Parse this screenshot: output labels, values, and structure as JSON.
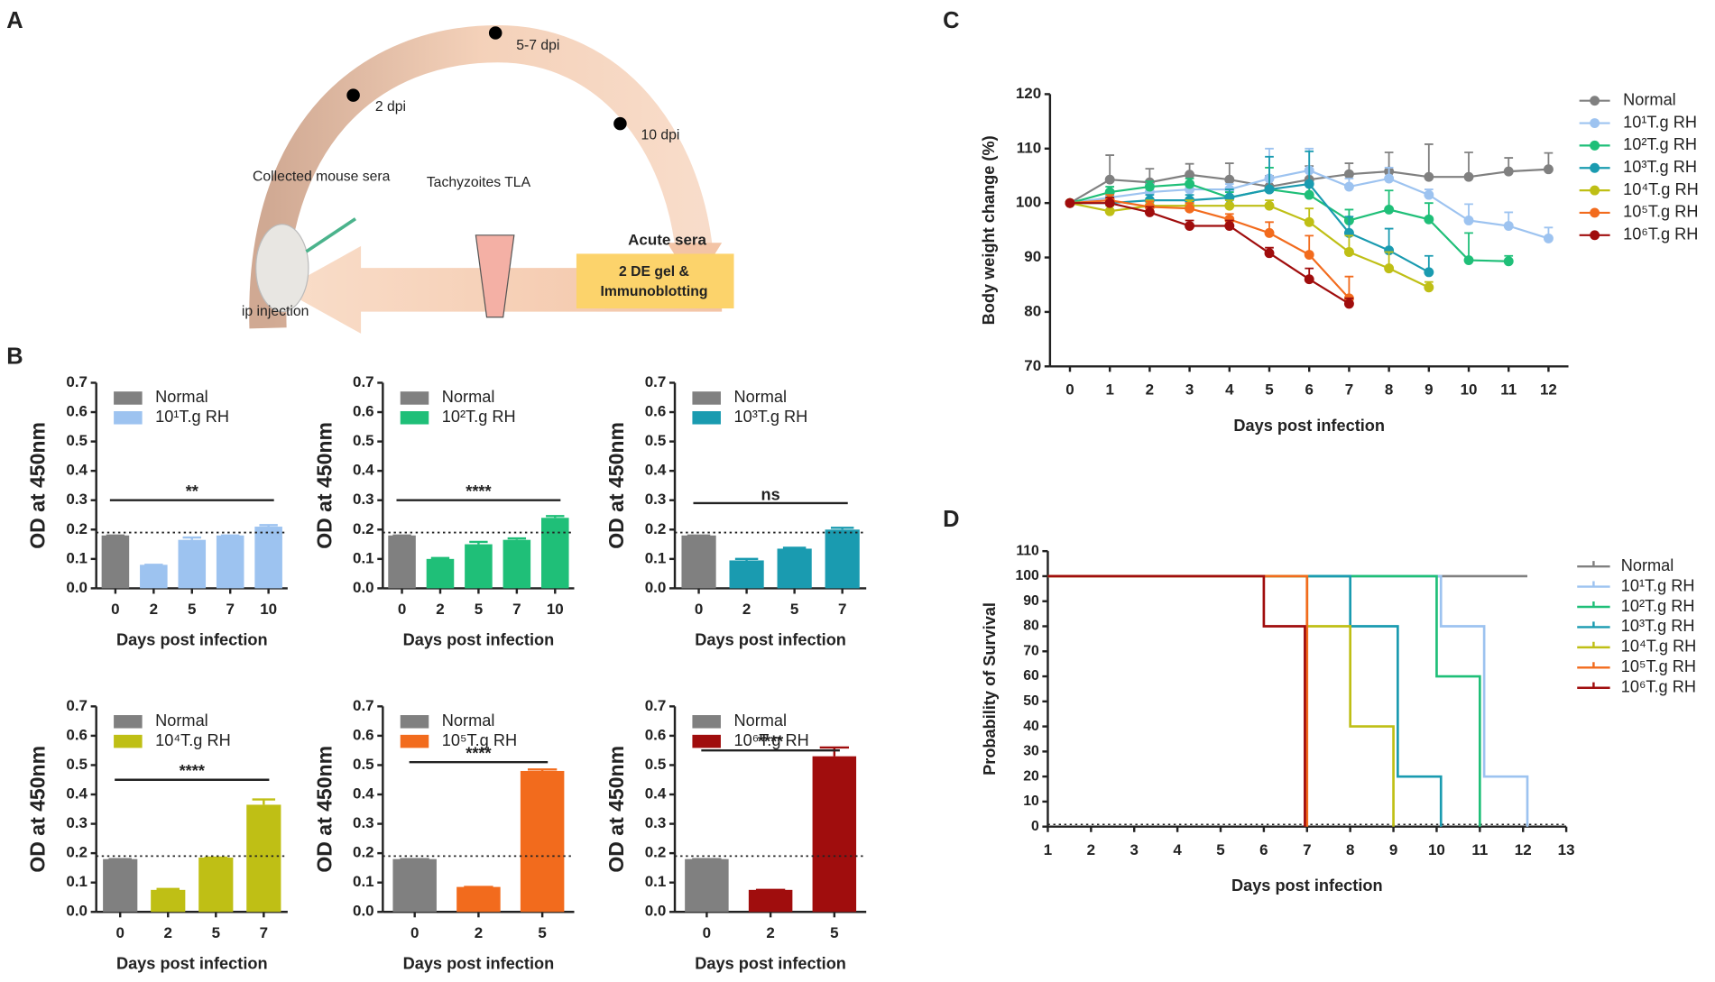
{
  "panel_labels": [
    "A",
    "B",
    "C",
    "D"
  ],
  "panel_a": {
    "texts": [
      "5-7 dpi",
      "2 dpi",
      "10 dpi",
      "Collected mouse sera",
      "Tachyzoites TLA",
      "Acute sera",
      "2 DE gel &",
      "Immunoblotting",
      "ip injection"
    ]
  },
  "chart_data": [
    {
      "type": "bar",
      "xlabel": "Days post infection",
      "ylabel": "OD at 450nm",
      "categories": [
        0,
        2,
        5,
        7,
        10
      ],
      "values": [
        0.18,
        0.08,
        0.165,
        0.18,
        0.21
      ],
      "errors": [
        0,
        0,
        0.008,
        0,
        0.005
      ],
      "colors": [
        "#808080",
        "#9dc3f0",
        "#9dc3f0",
        "#9dc3f0",
        "#9dc3f0"
      ],
      "legend": [
        {
          "name": "Normal",
          "color": "#808080"
        },
        {
          "name": "10¹T.g RH",
          "color": "#9dc3f0"
        }
      ],
      "ylim": [
        0,
        0.7
      ],
      "yticks": [
        {
          "value": 0,
          "label": "0.0"
        },
        0.1,
        0.2,
        0.3,
        0.4,
        0.5,
        0.6,
        0.7
      ],
      "reference_line": 0.19,
      "annotation": {
        "text": "**",
        "y": 0.3
      }
    },
    {
      "type": "bar",
      "xlabel": "Days post infection",
      "ylabel": "OD at 450nm",
      "categories": [
        0,
        2,
        5,
        7,
        10
      ],
      "values": [
        0.18,
        0.1,
        0.15,
        0.165,
        0.24
      ],
      "errors": [
        0,
        0.003,
        0.008,
        0.005,
        0.006
      ],
      "colors": [
        "#808080",
        "#1fbf78",
        "#1fbf78",
        "#1fbf78",
        "#1fbf78"
      ],
      "legend": [
        {
          "name": "Normal",
          "color": "#808080"
        },
        {
          "name": "10²T.g RH",
          "color": "#1fbf78"
        }
      ],
      "ylim": [
        0,
        0.7
      ],
      "yticks": [
        {
          "value": 0,
          "label": "0.0"
        },
        0.1,
        0.2,
        0.3,
        0.4,
        0.5,
        0.6,
        0.7
      ],
      "reference_line": 0.19,
      "annotation": {
        "text": "****",
        "y": 0.3
      }
    },
    {
      "type": "bar",
      "xlabel": "Days post infection",
      "ylabel": "OD at 450nm",
      "categories": [
        0,
        2,
        5,
        7
      ],
      "values": [
        0.18,
        0.095,
        0.135,
        0.2
      ],
      "errors": [
        0,
        0.005,
        0.003,
        0.006
      ],
      "colors": [
        "#808080",
        "#1a9bb0",
        "#1a9bb0",
        "#1a9bb0"
      ],
      "legend": [
        {
          "name": "Normal",
          "color": "#808080"
        },
        {
          "name": "10³T.g RH",
          "color": "#1a9bb0"
        }
      ],
      "ylim": [
        0,
        0.7
      ],
      "yticks": [
        {
          "value": 0,
          "label": "0.0"
        },
        0.1,
        0.2,
        0.3,
        0.4,
        0.5,
        0.6,
        0.7
      ],
      "reference_line": 0.19,
      "annotation": {
        "text": "ns",
        "y": 0.29
      }
    },
    {
      "type": "bar",
      "xlabel": "Days post infection",
      "ylabel": "OD at 450nm",
      "categories": [
        0,
        2,
        5,
        7
      ],
      "values": [
        0.18,
        0.075,
        0.185,
        0.365
      ],
      "errors": [
        0,
        0.003,
        0,
        0.018
      ],
      "colors": [
        "#808080",
        "#bfbf15",
        "#bfbf15",
        "#bfbf15"
      ],
      "legend": [
        {
          "name": "Normal",
          "color": "#808080"
        },
        {
          "name": "10⁴T.g RH",
          "color": "#bfbf15"
        }
      ],
      "ylim": [
        0,
        0.7
      ],
      "yticks": [
        {
          "value": 0,
          "label": "0.0"
        },
        0.1,
        0.2,
        0.3,
        0.4,
        0.5,
        0.6,
        0.7
      ],
      "reference_line": 0.19,
      "annotation": {
        "text": "****",
        "y": 0.45
      }
    },
    {
      "type": "bar",
      "xlabel": "Days post infection",
      "ylabel": "OD at 450nm",
      "categories": [
        0,
        2,
        5
      ],
      "values": [
        0.18,
        0.085,
        0.48
      ],
      "errors": [
        0,
        0,
        0.005
      ],
      "colors": [
        "#808080",
        "#f26b1d",
        "#f26b1d"
      ],
      "legend": [
        {
          "name": "Normal",
          "color": "#808080"
        },
        {
          "name": "10⁵T.g RH",
          "color": "#f26b1d"
        }
      ],
      "ylim": [
        0,
        0.7
      ],
      "yticks": [
        {
          "value": 0,
          "label": "0.0"
        },
        0.1,
        0.2,
        0.3,
        0.4,
        0.5,
        0.6,
        0.7
      ],
      "reference_line": 0.19,
      "annotation": {
        "text": "****",
        "y": 0.51
      }
    },
    {
      "type": "bar",
      "xlabel": "Days post infection",
      "ylabel": "OD at 450nm",
      "categories": [
        0,
        2,
        5
      ],
      "values": [
        0.18,
        0.075,
        0.53
      ],
      "errors": [
        0,
        0,
        0.03
      ],
      "colors": [
        "#808080",
        "#a00d0d",
        "#a00d0d"
      ],
      "legend": [
        {
          "name": "Normal",
          "color": "#808080"
        },
        {
          "name": "10⁶T.g RH",
          "color": "#a00d0d"
        }
      ],
      "ylim": [
        0,
        0.7
      ],
      "yticks": [
        {
          "value": 0,
          "label": "0.0"
        },
        0.1,
        0.2,
        0.3,
        0.4,
        0.5,
        0.6,
        0.7
      ],
      "reference_line": 0.19,
      "annotation": {
        "text": "****",
        "y": 0.55
      }
    },
    {
      "type": "line",
      "xlabel": "Days post infection",
      "ylabel": "Body weight change (%)",
      "x": [
        0,
        1,
        2,
        3,
        4,
        5,
        6,
        7,
        8,
        9,
        10,
        11,
        12
      ],
      "xlim": [
        -0.5,
        12.5
      ],
      "xticks": [
        0,
        1,
        2,
        3,
        4,
        5,
        6,
        7,
        8,
        9,
        10,
        11,
        12
      ],
      "ylim": [
        70,
        120
      ],
      "yticks": [
        70,
        80,
        90,
        100,
        110,
        120
      ],
      "series": [
        {
          "name": "Normal",
          "color": "#808080",
          "values": [
            100,
            104.3,
            103.8,
            105.2,
            104.3,
            103,
            104.3,
            105.3,
            105.8,
            104.8,
            104.8,
            105.8,
            106.2
          ],
          "errors": [
            0,
            4.5,
            2.5,
            2,
            3,
            2,
            2.5,
            2,
            3.5,
            6,
            4.5,
            2.5,
            3
          ]
        },
        {
          "name": "10¹T.g RH",
          "color": "#9dc3f0",
          "values": [
            100,
            101,
            102,
            102.5,
            102.5,
            104.5,
            106,
            103,
            104.5,
            101.5,
            96.8,
            95.8,
            93.5
          ],
          "errors": [
            0,
            1,
            1.5,
            1,
            1,
            5.5,
            4,
            1.5,
            2,
            1,
            3,
            2.5,
            2
          ]
        },
        {
          "name": "10²T.g RH",
          "color": "#1fbf78",
          "values": [
            100,
            102,
            103,
            103.5,
            101,
            102.5,
            101.5,
            96.8,
            98.8,
            97,
            89.5,
            89.3,
            null
          ],
          "errors": [
            0,
            1,
            1,
            1,
            1,
            4,
            2,
            2,
            3.5,
            3,
            5,
            1,
            null
          ]
        },
        {
          "name": "10³T.g RH",
          "color": "#1a9bb0",
          "values": [
            100,
            100,
            100.5,
            100.5,
            101,
            102.5,
            103.5,
            94.5,
            91.3,
            87.3,
            null,
            null,
            null
          ],
          "errors": [
            0,
            1,
            1,
            1,
            1.5,
            6,
            6,
            3,
            4,
            3,
            null,
            null,
            null
          ]
        },
        {
          "name": "10⁴T.g RH",
          "color": "#bfbf15",
          "values": [
            100,
            98.5,
            99.5,
            99.5,
            99.5,
            99.5,
            96.5,
            91,
            88,
            84.5,
            null,
            null,
            null
          ],
          "errors": [
            0,
            1,
            1,
            1,
            1,
            1,
            2.5,
            3,
            3,
            1,
            null,
            null,
            null
          ]
        },
        {
          "name": "10⁵T.g RH",
          "color": "#f26b1d",
          "values": [
            100,
            100.5,
            99.3,
            99,
            97,
            94.5,
            90.5,
            82.5,
            null,
            null,
            null,
            null,
            null
          ],
          "errors": [
            0,
            1,
            1,
            1,
            1,
            2,
            3.5,
            4,
            null,
            null,
            null,
            null,
            null
          ]
        },
        {
          "name": "10⁶T.g RH",
          "color": "#a00d0d",
          "values": [
            100,
            100,
            98.3,
            95.8,
            95.8,
            90.8,
            86,
            81.5,
            null,
            null,
            null,
            null,
            null
          ],
          "errors": [
            0,
            1,
            1,
            1,
            1,
            1,
            2,
            1,
            null,
            null,
            null,
            null,
            null
          ]
        }
      ]
    },
    {
      "type": "step",
      "xlabel": "Days post infection",
      "ylabel": "Probability of Survival",
      "xlim": [
        1,
        13
      ],
      "xticks": [
        1,
        2,
        3,
        4,
        5,
        6,
        7,
        8,
        9,
        10,
        11,
        12,
        13
      ],
      "ylim": [
        0,
        110
      ],
      "yticks": [
        0,
        10,
        20,
        30,
        40,
        50,
        60,
        70,
        80,
        90,
        100,
        110
      ],
      "series": [
        {
          "name": "Normal",
          "color": "#808080",
          "x": [
            1,
            12.1
          ],
          "values": [
            100,
            100
          ]
        },
        {
          "name": "10¹T.g RH",
          "color": "#9dc3f0",
          "x": [
            1,
            10.1,
            11.1,
            12.1
          ],
          "values": [
            100,
            80,
            20,
            0
          ]
        },
        {
          "name": "10²T.g RH",
          "color": "#1fbf78",
          "x": [
            1,
            10,
            11
          ],
          "values": [
            100,
            60,
            0
          ]
        },
        {
          "name": "10³T.g RH",
          "color": "#1a9bb0",
          "x": [
            1,
            8,
            9.1,
            10.1
          ],
          "values": [
            100,
            80,
            20,
            0
          ]
        },
        {
          "name": "10⁴T.g RH",
          "color": "#bfbf15",
          "x": [
            1,
            7,
            8,
            9
          ],
          "values": [
            100,
            80,
            40,
            0
          ]
        },
        {
          "name": "10⁵T.g RH",
          "color": "#f26b1d",
          "x": [
            1,
            7
          ],
          "values": [
            100,
            0
          ]
        },
        {
          "name": "10⁶T.g RH",
          "color": "#a00d0d",
          "x": [
            1,
            6,
            6.95
          ],
          "values": [
            100,
            80,
            0
          ]
        }
      ]
    }
  ]
}
